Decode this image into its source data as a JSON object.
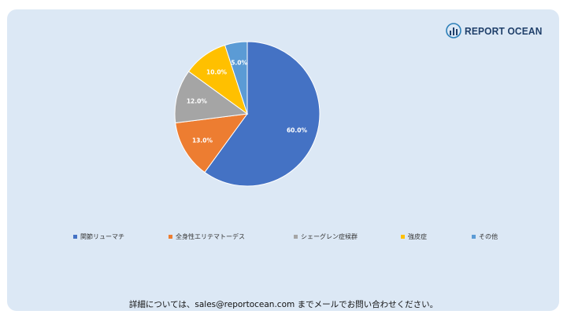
{
  "brand": {
    "name": "REPORT OCEAN",
    "icon": "bar-chart-globe-icon",
    "color": "#1f3f6a"
  },
  "chart_data": {
    "type": "pie",
    "categories": [
      "関節リューマチ",
      "全身性エリテマトーデス",
      "シェーグレン症候群",
      "強皮症",
      "その他"
    ],
    "values": [
      60.0,
      13.0,
      12.0,
      10.0,
      5.0
    ],
    "labels": [
      "60.0%",
      "13.0%",
      "12.0%",
      "10.0%",
      "5.0%"
    ],
    "colors": [
      "#4472c4",
      "#ed7d31",
      "#a5a5a5",
      "#ffc000",
      "#5b9bd5"
    ],
    "start_angle_deg": 0,
    "direction": "clockwise",
    "legend_position": "bottom"
  },
  "footer": {
    "text": "詳細については、sales@reportocean.com までメールでお問い合わせください。"
  }
}
